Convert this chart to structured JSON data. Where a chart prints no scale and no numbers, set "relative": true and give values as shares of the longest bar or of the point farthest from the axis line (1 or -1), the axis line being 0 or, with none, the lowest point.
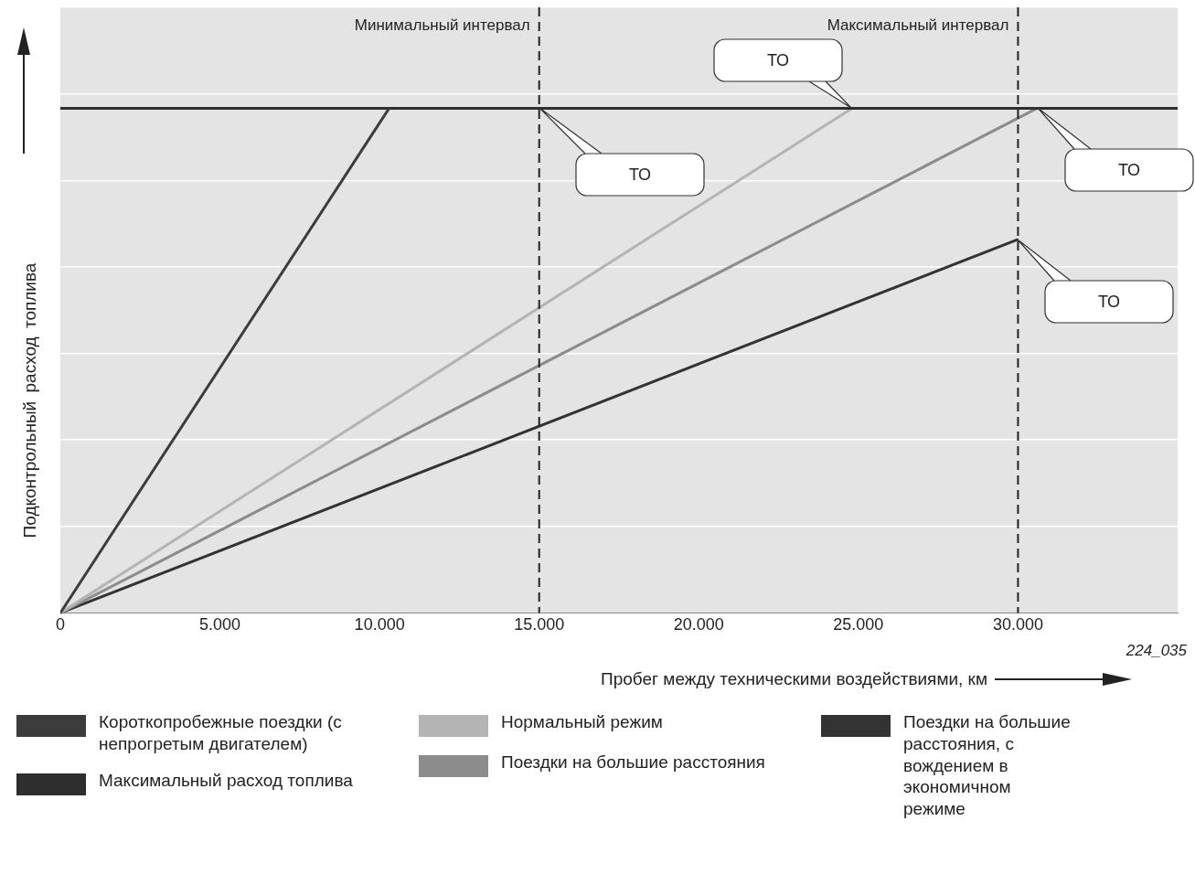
{
  "chart_data": {
    "type": "line",
    "relative": true,
    "xlabel": "Пробег между техническими воздействиями, км",
    "ylabel": "Подконтрольный расход топлива",
    "xlim": [
      0,
      35000
    ],
    "xticks": [
      {
        "value": 0,
        "label": "0"
      },
      {
        "value": 5000,
        "label": "5.000"
      },
      {
        "value": 10000,
        "label": "10.000"
      },
      {
        "value": 15000,
        "label": "15.000"
      },
      {
        "value": 20000,
        "label": "20.000"
      },
      {
        "value": 25000,
        "label": "25.000"
      },
      {
        "value": 30000,
        "label": "30.000"
      }
    ],
    "tick_labels": "x",
    "grid": "y",
    "legend": "bottom",
    "line_style": "solid",
    "marker": "none",
    "series": [
      {
        "name": "Короткопробежные поездки (с непрогретым двигателем)",
        "color": "#3c3c3c",
        "x": [
          0,
          10300
        ],
        "values": [
          0,
          1
        ]
      },
      {
        "name": "Максимальный расход топлива",
        "color": "#2e2e2e",
        "x": [
          0,
          35000
        ],
        "values": [
          1,
          1
        ]
      },
      {
        "name": "Нормальный режим",
        "color": "#b4b4b4",
        "x": [
          0,
          24800
        ],
        "values": [
          0,
          1
        ]
      },
      {
        "name": "Поездки на большие расстояния",
        "color": "#8c8c8c",
        "x": [
          0,
          30600
        ],
        "values": [
          0,
          1
        ]
      },
      {
        "name": "Поездки на большие расстояния, с вождением в экономичном режиме",
        "color": "#333333",
        "x": [
          0,
          30000
        ],
        "values": [
          0,
          0.74
        ]
      }
    ],
    "ref_lines": [
      {
        "axis": "x",
        "value": 15000,
        "label": "Минимальный интервал",
        "color": "#222222",
        "line_style": "dashed"
      },
      {
        "axis": "x",
        "value": 30000,
        "label": "Максимальный интервал",
        "color": "#222222",
        "line_style": "dashed"
      }
    ],
    "annotations": [
      "ТО",
      "ТО",
      "ТО",
      "ТО",
      "224_035"
    ]
  }
}
